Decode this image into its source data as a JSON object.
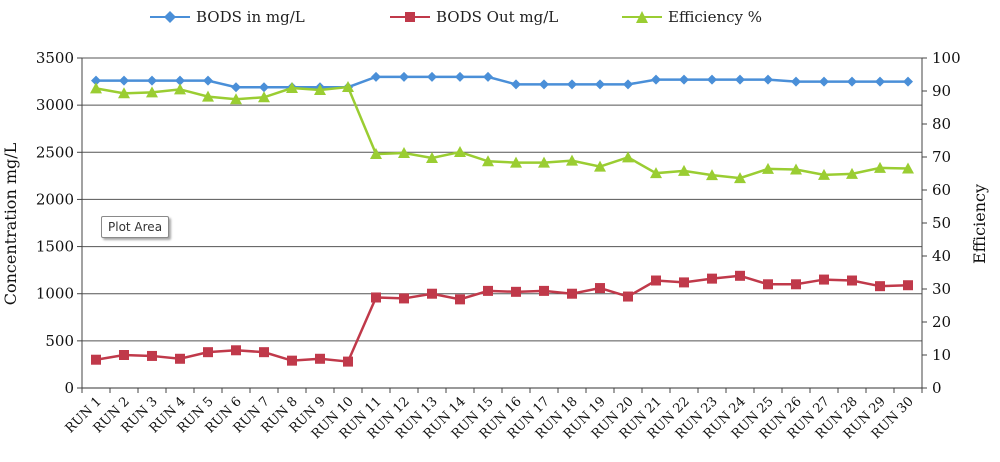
{
  "chart_data": {
    "type": "line",
    "title": "",
    "xlabel": "",
    "ylabel": "Concentration mg/L",
    "y2label": "Efficiency",
    "ylim": [
      0,
      3500
    ],
    "y2lim": [
      0,
      100
    ],
    "yticks": [
      "0",
      "500",
      "1000",
      "1500",
      "2000",
      "2500",
      "3000",
      "3500"
    ],
    "y2ticks": [
      "0",
      "10",
      "20",
      "30",
      "40",
      "50",
      "60",
      "70",
      "80",
      "90",
      "100"
    ],
    "grid": true,
    "legend_position": "top",
    "categories": [
      "RUN 1",
      "RUN 2",
      "RUN 3",
      "RUN 4",
      "RUN 5",
      "RUN 6",
      "RUN 7",
      "RUN 8",
      "RUN 9",
      "RUN 10",
      "RUN 11",
      "RUN 12",
      "RUN 13",
      "RUN 14",
      "RUN 15",
      "RUN 16",
      "RUN 17",
      "RUN 18",
      "RUN 19",
      "RUN 20",
      "RUN 21",
      "RUN 22",
      "RUN 23",
      "RUN 24",
      "RUN 25",
      "RUN 26",
      "RUN 27",
      "RUN 28",
      "RUN 29",
      "RUN 30"
    ],
    "series": [
      {
        "name": "BODS in mg/L",
        "axis": "left",
        "color": "#4a8fd8",
        "marker": "diamond",
        "values": [
          3260,
          3260,
          3260,
          3260,
          3260,
          3190,
          3190,
          3190,
          3190,
          3190,
          3300,
          3300,
          3300,
          3300,
          3300,
          3220,
          3220,
          3220,
          3220,
          3220,
          3270,
          3270,
          3270,
          3270,
          3270,
          3250,
          3250,
          3250,
          3250,
          3250
        ]
      },
      {
        "name": "BODS Out mg/L",
        "axis": "left",
        "color": "#c0394a",
        "marker": "square",
        "values": [
          300,
          350,
          340,
          310,
          380,
          400,
          380,
          290,
          310,
          280,
          960,
          950,
          1000,
          940,
          1030,
          1020,
          1030,
          1000,
          1060,
          970,
          1140,
          1120,
          1160,
          1190,
          1100,
          1100,
          1150,
          1140,
          1080,
          1090
        ]
      },
      {
        "name": "Efficiency %",
        "axis": "right",
        "color": "#9acd32",
        "marker": "triangle",
        "values": [
          90.8,
          89.3,
          89.6,
          90.5,
          88.3,
          87.5,
          88.1,
          90.9,
          90.3,
          91.2,
          70.9,
          71.2,
          69.7,
          71.5,
          68.7,
          68.3,
          68.3,
          68.9,
          67.1,
          69.9,
          65.1,
          65.8,
          64.5,
          63.6,
          66.4,
          66.2,
          64.6,
          64.9,
          66.7,
          66.5
        ]
      }
    ]
  },
  "tooltip": {
    "text": "Plot Area"
  }
}
